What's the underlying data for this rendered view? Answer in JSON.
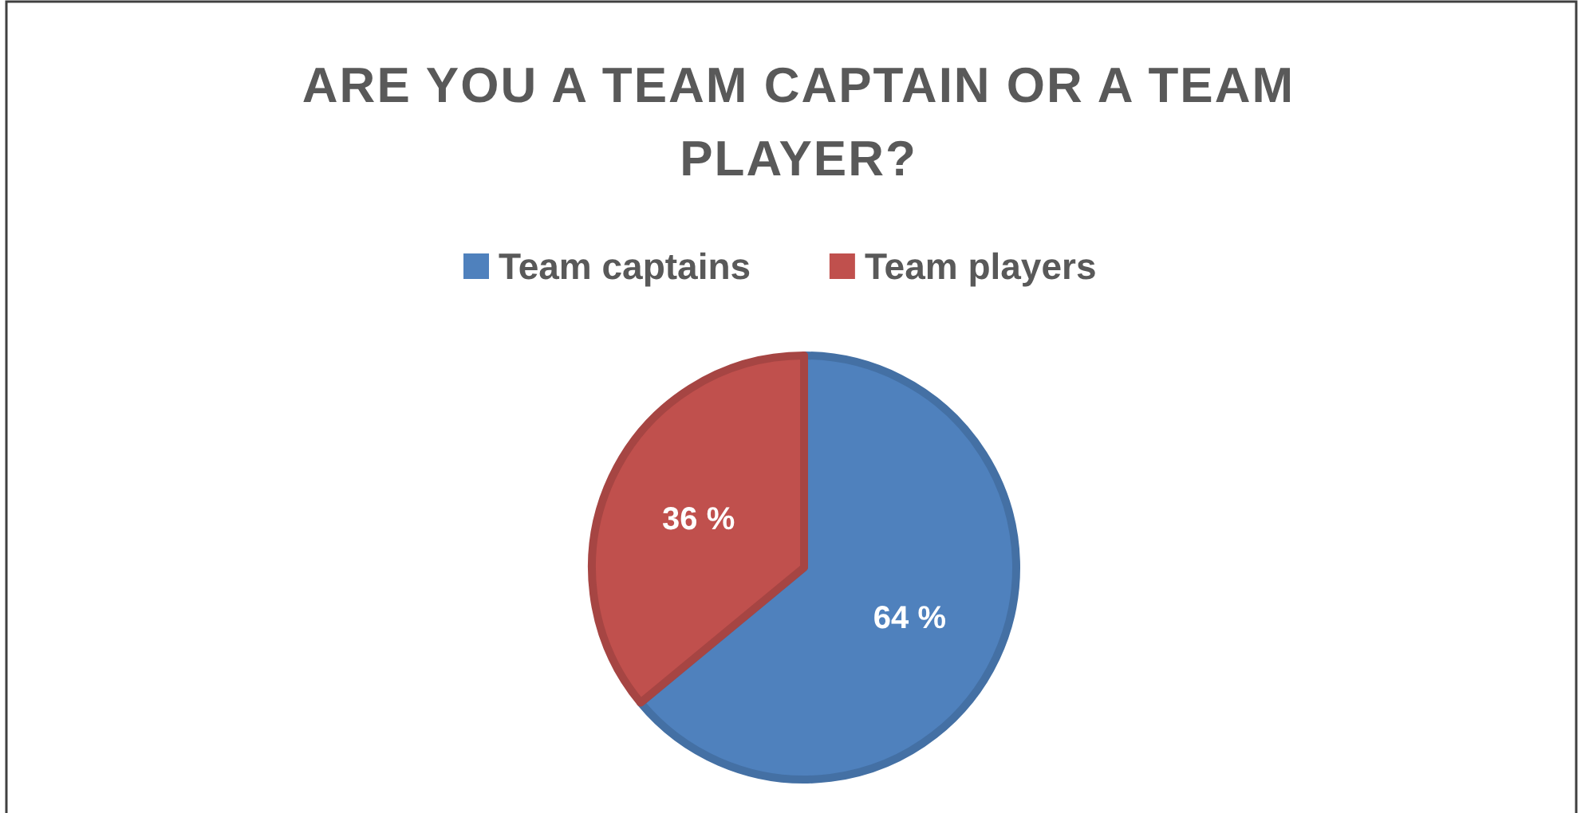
{
  "chart_data": {
    "type": "pie",
    "title": "ARE YOU A TEAM CAPTAIN OR A TEAM PLAYER?",
    "categories": [
      "Team captains",
      "Team players"
    ],
    "values": [
      64,
      36
    ],
    "colors": [
      "#4f81bd",
      "#c0504d"
    ],
    "value_labels": [
      "64 %",
      "36 %"
    ],
    "legend": "top"
  }
}
